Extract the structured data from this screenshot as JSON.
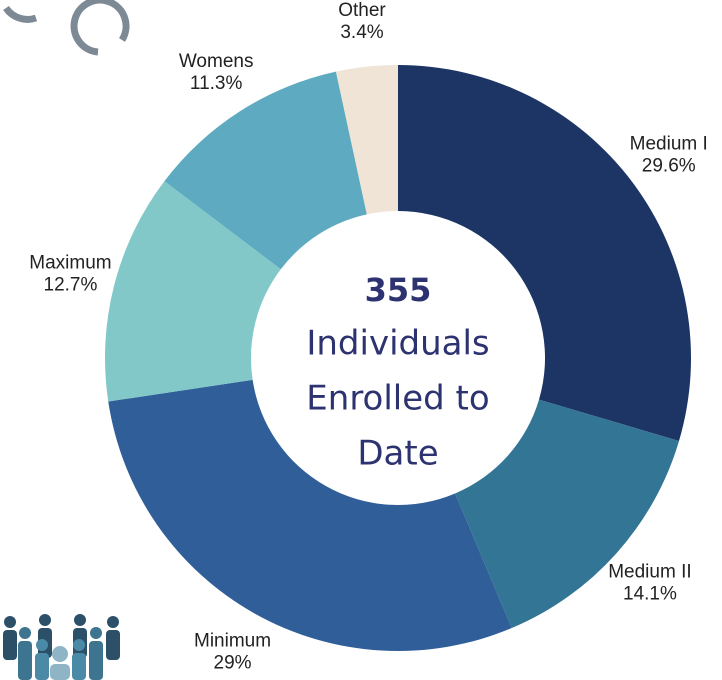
{
  "chart_data": {
    "type": "donut",
    "categories": [
      "Medium I",
      "Medium II",
      "Minimum",
      "Maximum",
      "Womens",
      "Other"
    ],
    "values": [
      29.6,
      14.1,
      29,
      12.7,
      11.3,
      3.4
    ],
    "value_labels": [
      "29.6%",
      "14.1%",
      "29%",
      "12.7%",
      "11.3%",
      "3.4%"
    ],
    "colors": [
      "#1c3564",
      "#337594",
      "#2f5e99",
      "#82c8c9",
      "#5eaac0",
      "#f0e4d7"
    ],
    "center_title": "355",
    "center_text": [
      "Individuals",
      "Enrolled to",
      "Date"
    ]
  }
}
